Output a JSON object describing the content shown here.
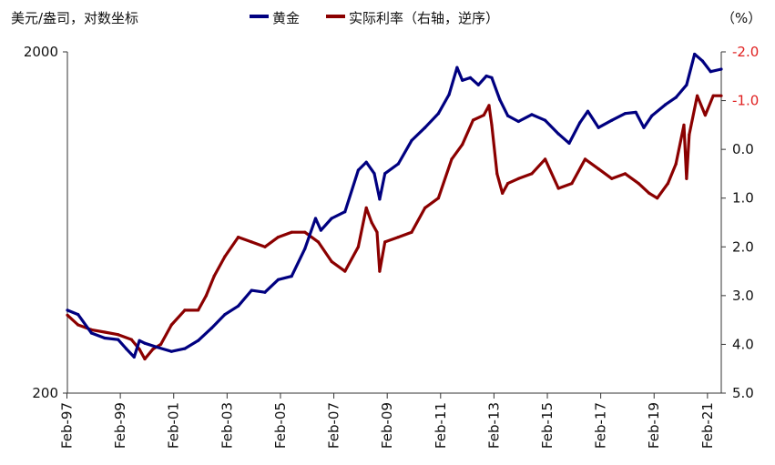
{
  "chart_data": {
    "type": "line",
    "left_axis_unit": "美元/盎司，对数坐标",
    "right_axis_unit": "（%）",
    "legend_position": "top",
    "grid": false,
    "colors": {
      "gold": "#000080",
      "real_rate": "#8b0000",
      "right_tick": "#e02020"
    },
    "x_ticks": [
      "Feb-97",
      "Feb-99",
      "Feb-01",
      "Feb-03",
      "Feb-05",
      "Feb-07",
      "Feb-09",
      "Feb-11",
      "Feb-13",
      "Feb-15",
      "Feb-17",
      "Feb-19",
      "Feb-21"
    ],
    "x_range": [
      1997.1,
      2021.6
    ],
    "y_left": {
      "scale": "log",
      "range": [
        200,
        2000
      ],
      "ticks": [
        "2000",
        "200"
      ]
    },
    "y_right": {
      "reversed": true,
      "range": [
        5.0,
        -2.0
      ],
      "ticks": [
        "-2.0",
        "-1.0",
        "0.0",
        "1.0",
        "2.0",
        "3.0",
        "4.0",
        "5.0"
      ]
    },
    "series": [
      {
        "name": "黄金",
        "axis": "left",
        "x": [
          1997.1,
          1997.5,
          1998.0,
          1998.5,
          1999.0,
          1999.3,
          1999.6,
          1999.8,
          2000.0,
          2000.5,
          2001.0,
          2001.5,
          2002.0,
          2002.5,
          2003.0,
          2003.5,
          2004.0,
          2004.5,
          2005.0,
          2005.5,
          2006.0,
          2006.4,
          2006.6,
          2007.0,
          2007.5,
          2008.0,
          2008.3,
          2008.6,
          2008.8,
          2009.0,
          2009.5,
          2010.0,
          2010.5,
          2011.0,
          2011.4,
          2011.7,
          2011.9,
          2012.2,
          2012.5,
          2012.8,
          2013.0,
          2013.3,
          2013.6,
          2014.0,
          2014.5,
          2015.0,
          2015.5,
          2015.9,
          2016.3,
          2016.6,
          2017.0,
          2017.5,
          2018.0,
          2018.4,
          2018.7,
          2019.0,
          2019.5,
          2019.9,
          2020.3,
          2020.6,
          2020.9,
          2021.2,
          2021.6
        ],
        "values": [
          350,
          340,
          300,
          290,
          287,
          270,
          255,
          285,
          280,
          272,
          265,
          270,
          285,
          310,
          340,
          360,
          400,
          395,
          430,
          440,
          530,
          650,
          600,
          650,
          680,
          900,
          950,
          880,
          740,
          880,
          940,
          1100,
          1200,
          1320,
          1500,
          1800,
          1650,
          1680,
          1600,
          1700,
          1680,
          1450,
          1300,
          1250,
          1310,
          1260,
          1150,
          1080,
          1240,
          1340,
          1200,
          1260,
          1320,
          1330,
          1200,
          1300,
          1400,
          1470,
          1600,
          1970,
          1880,
          1750,
          1780
        ]
      },
      {
        "name": "实际利率（右轴，逆序）",
        "axis": "right",
        "x": [
          1997.1,
          1997.5,
          1998.0,
          1998.5,
          1999.0,
          1999.5,
          1999.8,
          2000.0,
          2000.3,
          2000.6,
          2001.0,
          2001.5,
          2002.0,
          2002.3,
          2002.6,
          2003.0,
          2003.5,
          2004.0,
          2004.5,
          2005.0,
          2005.5,
          2006.0,
          2006.5,
          2007.0,
          2007.5,
          2008.0,
          2008.3,
          2008.5,
          2008.7,
          2008.8,
          2009.0,
          2009.5,
          2010.0,
          2010.5,
          2011.0,
          2011.5,
          2011.9,
          2012.3,
          2012.7,
          2012.9,
          2013.0,
          2013.2,
          2013.4,
          2013.6,
          2014.0,
          2014.5,
          2015.0,
          2015.5,
          2016.0,
          2016.5,
          2017.0,
          2017.5,
          2018.0,
          2018.5,
          2018.9,
          2019.2,
          2019.6,
          2019.9,
          2020.2,
          2020.3,
          2020.4,
          2020.7,
          2021.0,
          2021.3,
          2021.6
        ],
        "values": [
          3.4,
          3.6,
          3.7,
          3.75,
          3.8,
          3.9,
          4.1,
          4.3,
          4.1,
          4.0,
          3.6,
          3.3,
          3.3,
          3.0,
          2.6,
          2.2,
          1.8,
          1.9,
          2.0,
          1.8,
          1.7,
          1.7,
          1.9,
          2.3,
          2.5,
          2.0,
          1.2,
          1.5,
          1.7,
          2.5,
          1.9,
          1.8,
          1.7,
          1.2,
          1.0,
          0.2,
          -0.1,
          -0.6,
          -0.7,
          -0.9,
          -0.5,
          0.5,
          0.9,
          0.7,
          0.6,
          0.5,
          0.2,
          0.8,
          0.7,
          0.2,
          0.4,
          0.6,
          0.5,
          0.7,
          0.9,
          1.0,
          0.7,
          0.3,
          -0.5,
          0.6,
          -0.3,
          -1.1,
          -0.7,
          -1.1,
          -1.1
        ]
      }
    ]
  }
}
